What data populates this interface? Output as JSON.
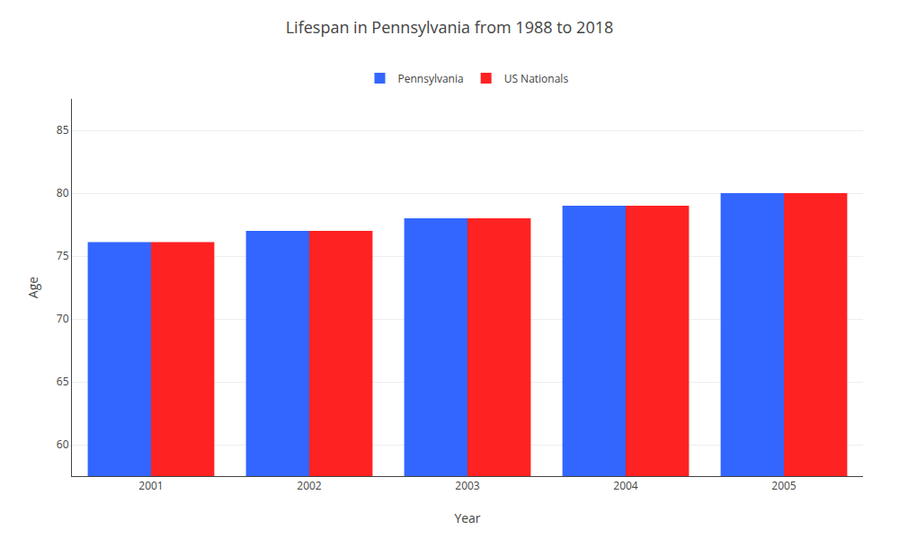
{
  "chart_data": {
    "type": "bar",
    "title": "Lifespan in Pennsylvania from 1988 to 2018",
    "xlabel": "Year",
    "ylabel": "Age",
    "categories": [
      "2001",
      "2002",
      "2003",
      "2004",
      "2005"
    ],
    "series": [
      {
        "name": "Pennsylvania",
        "color": "#3366ff",
        "values": [
          76.1,
          77.0,
          78.0,
          79.0,
          80.0
        ]
      },
      {
        "name": "US Nationals",
        "color": "#ff2222",
        "values": [
          76.1,
          77.0,
          78.0,
          79.0,
          80.0
        ]
      }
    ],
    "ylim": [
      57.5,
      87.5
    ],
    "yticks": [
      60,
      65,
      70,
      75,
      80,
      85
    ],
    "grid": true,
    "legend": "upper center"
  }
}
